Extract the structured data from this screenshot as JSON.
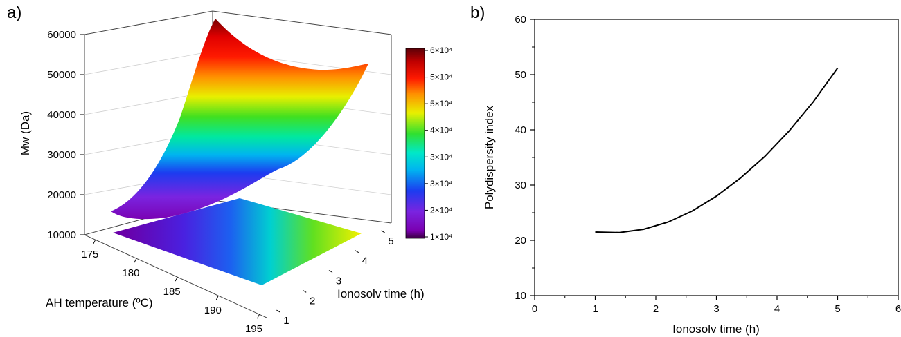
{
  "chart_data": [
    {
      "type": "surface3d",
      "panel_label": "a)",
      "title": "",
      "x_axis": {
        "label": "AH temperature (ºC)",
        "ticks": [
          "175",
          "180",
          "185",
          "190",
          "195"
        ]
      },
      "y_axis": {
        "label": "Ionosolv time (h)",
        "ticks": [
          "1",
          "2",
          "3",
          "4",
          "5"
        ]
      },
      "z_axis": {
        "label": "Mw (Da)",
        "ticks": [
          "10000",
          "20000",
          "30000",
          "40000",
          "50000",
          "60000"
        ],
        "zlim": [
          10000,
          60000
        ]
      },
      "colorbar": {
        "labels": [
          "1×10⁴",
          "2×10⁴",
          "3×10⁴",
          "3×10⁴",
          "4×10⁴",
          "5×10⁴",
          "5×10⁴",
          "6×10⁴"
        ],
        "colormap": "rainbow (purple → red → dark red)"
      },
      "surface_corners": [
        {
          "temperature": 175,
          "time": 1,
          "Mw": 15000
        },
        {
          "temperature": 175,
          "time": 5,
          "Mw": 16000
        },
        {
          "temperature": 195,
          "time": 1,
          "Mw": 60000
        },
        {
          "temperature": 195,
          "time": 5,
          "Mw": 53000
        }
      ],
      "contour_projection": true
    },
    {
      "type": "line",
      "panel_label": "b)",
      "title": "",
      "xlabel": "Ionosolv time (h)",
      "ylabel": "Polydispersity index",
      "xlim": [
        0,
        6
      ],
      "ylim": [
        10,
        60
      ],
      "xticks": [
        "0",
        "1",
        "2",
        "3",
        "4",
        "5",
        "6"
      ],
      "yticks": [
        "10",
        "20",
        "30",
        "40",
        "50",
        "60"
      ],
      "series": [
        {
          "x": [
            1.0,
            1.4,
            1.8,
            2.2,
            2.6,
            3.0,
            3.4,
            3.8,
            4.2,
            4.6,
            5.0
          ],
          "y": [
            21.5,
            21.4,
            22.0,
            23.3,
            25.3,
            28.0,
            31.3,
            35.2,
            39.8,
            45.1,
            51.2
          ]
        }
      ]
    }
  ]
}
